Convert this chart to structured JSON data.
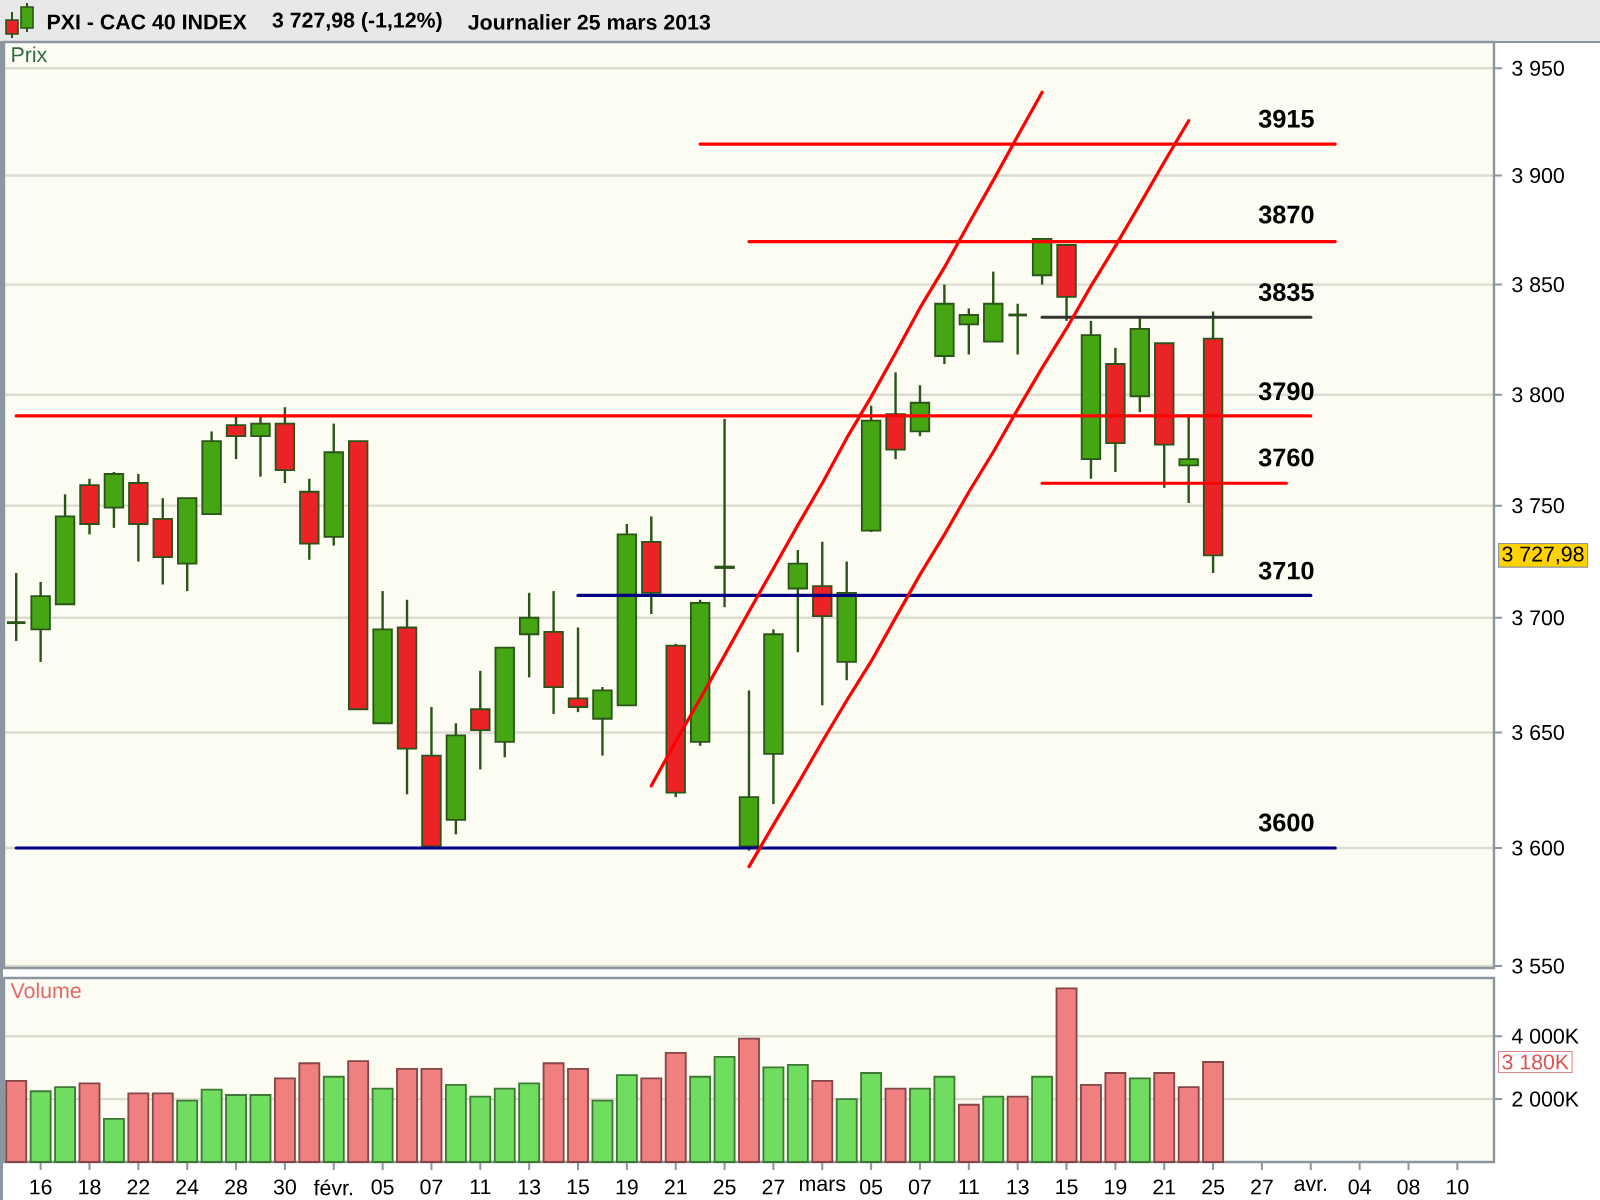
{
  "chart_data": [
    {
      "type": "candlestick",
      "title": "PXI - CAC 40 INDEX",
      "subtitle": "3 727,98 (-1,12%)",
      "ylabel": "Prix",
      "categories": [
        null,
        null,
        null,
        null,
        null,
        null,
        null,
        null,
        null,
        null,
        null,
        null,
        null,
        null,
        null,
        null,
        null,
        null,
        null,
        null,
        null,
        null,
        null,
        null,
        null,
        null,
        null,
        null,
        null,
        null,
        null,
        null,
        null,
        null,
        null,
        null,
        null,
        null,
        null,
        null,
        null,
        null,
        null,
        null,
        null,
        null,
        null,
        null,
        null,
        null,
        null,
        null,
        null,
        null,
        null,
        null,
        null,
        null,
        null,
        null,
        null
      ],
      "ohlc": [
        [
          3698,
          3720,
          3690,
          3698
        ],
        [
          3695,
          3716,
          3681,
          3710
        ],
        [
          3706,
          3755,
          3706,
          3745
        ],
        [
          3759,
          3762,
          3737,
          3742
        ],
        [
          3749,
          3765,
          3740,
          3764
        ],
        [
          3760,
          3764,
          3725,
          3742
        ],
        [
          3744,
          3753,
          3715,
          3727
        ],
        [
          3724,
          3753,
          3712,
          3753
        ],
        [
          3746,
          3783,
          3746,
          3779
        ],
        [
          3786,
          3790,
          3771,
          3781
        ],
        [
          3781,
          3790,
          3763,
          3787
        ],
        [
          3787,
          3794,
          3760,
          3766
        ],
        [
          3756,
          3762,
          3726,
          3733
        ],
        [
          3736,
          3787,
          3732,
          3774
        ],
        [
          3779,
          3779,
          3660,
          3660
        ],
        [
          3654,
          3712,
          3654,
          3695
        ],
        [
          3696,
          3708,
          3623,
          3643
        ],
        [
          3640,
          3661,
          3600,
          3601
        ],
        [
          3612,
          3654,
          3606,
          3649
        ],
        [
          3660,
          3677,
          3634,
          3651
        ],
        [
          3646,
          3687,
          3639,
          3687
        ],
        [
          3693,
          3711,
          3674,
          3700
        ],
        [
          3694,
          3712,
          3658,
          3670
        ],
        [
          3665,
          3696,
          3659,
          3661
        ],
        [
          3656,
          3670,
          3640,
          3668
        ],
        [
          3662,
          3742,
          3662,
          3737
        ],
        [
          3734,
          3745,
          3702,
          3711
        ],
        [
          3688,
          3689,
          3622,
          3624
        ],
        [
          3646,
          3708,
          3644,
          3707
        ],
        [
          3722,
          3789,
          3705,
          3723
        ],
        [
          3601,
          3668,
          3599,
          3622
        ],
        [
          3641,
          3695,
          3619,
          3693
        ],
        [
          3713,
          3730,
          3685,
          3724
        ],
        [
          3714,
          3734,
          3662,
          3701
        ],
        [
          3681,
          3725,
          3673,
          3711
        ],
        [
          3739,
          3795,
          3738,
          3788
        ],
        [
          3791,
          3810,
          3771,
          3775
        ],
        [
          3783,
          3804,
          3781,
          3796
        ],
        [
          3817,
          3850,
          3814,
          3841
        ],
        [
          3832,
          3839,
          3818,
          3836
        ],
        [
          3824,
          3856,
          3824,
          3841
        ],
        [
          3836,
          3841,
          3818,
          3836
        ],
        [
          3854,
          3871,
          3850,
          3871
        ],
        [
          3868,
          3868,
          3833,
          3844
        ],
        [
          3771,
          3833,
          3762,
          3827
        ],
        [
          3814,
          3821,
          3765,
          3778
        ],
        [
          3799,
          3835,
          3792,
          3830
        ],
        [
          3823,
          3823,
          3758,
          3777
        ],
        [
          3768,
          3791,
          3751,
          3771
        ],
        [
          3825,
          3838,
          3720,
          3727.98
        ],
        null,
        null,
        null,
        null,
        null,
        null,
        null,
        null,
        null,
        null,
        null
      ],
      "colors": [
        "#2a5418",
        "#45a512",
        "#45a512",
        "#ec2326",
        "#45a512",
        "#ec2326",
        "#ec2326",
        "#45a512",
        "#45a512",
        "#ec2326",
        "#45a512",
        "#ec2326",
        "#ec2326",
        "#45a512",
        "#ec2326",
        "#45a512",
        "#ec2326",
        "#ec2326",
        "#45a512",
        "#ec2326",
        "#45a512",
        "#45a512",
        "#ec2326",
        "#ec2326",
        "#45a512",
        "#45a512",
        "#ec2326",
        "#ec2326",
        "#45a512",
        "#45a512",
        "#45a512",
        "#45a512",
        "#45a512",
        "#ec2326",
        "#45a512",
        "#45a512",
        "#ec2326",
        "#45a512",
        "#45a512",
        "#45a512",
        "#45a512",
        "#2a5418",
        "#45a512",
        "#ec2326",
        "#45a512",
        "#ec2326",
        "#45a512",
        "#ec2326",
        "#45a512",
        "#ec2326",
        null,
        null,
        null,
        null,
        null,
        null,
        null,
        null,
        null,
        null,
        null
      ],
      "series": [
        {
          "type": "line",
          "color": "#ff0000",
          "values": [
            null,
            null,
            null,
            null,
            null,
            null,
            null,
            null,
            null,
            null,
            null,
            null,
            null,
            null,
            null,
            null,
            null,
            null,
            null,
            null,
            null,
            null,
            null,
            null,
            null,
            null,
            null,
            null,
            3915,
            3915,
            3915,
            3915,
            3915,
            3915,
            3915,
            3915,
            3915,
            3915,
            3915,
            3915,
            3915,
            3915,
            3915,
            3915,
            3915,
            3915,
            3915,
            3915,
            3915,
            3915,
            3915,
            3915,
            3915,
            3915,
            3915,
            null,
            null,
            null,
            null,
            null,
            null
          ]
        },
        {
          "type": "line",
          "color": "#ff0000",
          "values": [
            null,
            null,
            null,
            null,
            null,
            null,
            null,
            null,
            null,
            null,
            null,
            null,
            null,
            null,
            null,
            null,
            null,
            null,
            null,
            null,
            null,
            null,
            null,
            null,
            null,
            null,
            null,
            null,
            null,
            null,
            3870,
            3870,
            3870,
            3870,
            3870,
            3870,
            3870,
            3870,
            3870,
            3870,
            3870,
            3870,
            3870,
            3870,
            3870,
            3870,
            3870,
            3870,
            3870,
            3870,
            3870,
            3870,
            3870,
            3870,
            3870,
            null,
            null,
            null,
            null,
            null,
            null
          ]
        },
        {
          "type": "line",
          "color": "#333333",
          "values": [
            null,
            null,
            null,
            null,
            null,
            null,
            null,
            null,
            null,
            null,
            null,
            null,
            null,
            null,
            null,
            null,
            null,
            null,
            null,
            null,
            null,
            null,
            null,
            null,
            null,
            null,
            null,
            null,
            null,
            null,
            null,
            null,
            null,
            null,
            null,
            null,
            null,
            null,
            null,
            null,
            null,
            null,
            3835,
            3835,
            3835,
            3835,
            3835,
            3835,
            3835,
            3835,
            3835,
            3835,
            3835,
            3835,
            null,
            null,
            null,
            null,
            null,
            null,
            null
          ]
        },
        {
          "type": "line",
          "color": "#ff0000",
          "values": [
            3790,
            3790,
            3790,
            3790,
            3790,
            3790,
            3790,
            3790,
            3790,
            3790,
            3790,
            3790,
            3790,
            3790,
            3790,
            3790,
            3790,
            3790,
            3790,
            3790,
            3790,
            3790,
            3790,
            3790,
            3790,
            3790,
            3790,
            3790,
            3790,
            3790,
            3790,
            3790,
            3790,
            3790,
            3790,
            3790,
            3790,
            3790,
            3790,
            3790,
            3790,
            3790,
            3790,
            3790,
            3790,
            3790,
            3790,
            3790,
            3790,
            3790,
            3790,
            3790,
            3790,
            3790,
            null,
            null,
            null,
            null,
            null,
            null,
            null
          ]
        },
        {
          "type": "line",
          "color": "#ff0000",
          "values": [
            null,
            null,
            null,
            null,
            null,
            null,
            null,
            null,
            null,
            null,
            null,
            null,
            null,
            null,
            null,
            null,
            null,
            null,
            null,
            null,
            null,
            null,
            null,
            null,
            null,
            null,
            null,
            null,
            null,
            null,
            null,
            null,
            null,
            null,
            null,
            null,
            null,
            null,
            null,
            null,
            null,
            null,
            3760,
            3760,
            3760,
            3760,
            3760,
            3760,
            3760,
            3760,
            3760,
            3760,
            3760,
            null,
            null,
            null,
            null,
            null,
            null,
            null,
            null
          ]
        },
        {
          "type": "line",
          "color": "#000080",
          "values": [
            null,
            null,
            null,
            null,
            null,
            null,
            null,
            null,
            null,
            null,
            null,
            null,
            null,
            null,
            null,
            null,
            null,
            null,
            null,
            null,
            null,
            null,
            null,
            3710,
            3710,
            3710,
            3710,
            3710,
            3710,
            3710,
            3710,
            3710,
            3710,
            3710,
            3710,
            3710,
            3710,
            3710,
            3710,
            3710,
            3710,
            3710,
            3710,
            3710,
            3710,
            3710,
            3710,
            3710,
            3710,
            3710,
            3710,
            3710,
            3710,
            3710,
            null,
            null,
            null,
            null,
            null,
            null,
            null
          ]
        },
        {
          "type": "line",
          "color": "#000080",
          "values": [
            3600,
            3600,
            3600,
            3600,
            3600,
            3600,
            3600,
            3600,
            3600,
            3600,
            3600,
            3600,
            3600,
            3600,
            3600,
            3600,
            3600,
            3600,
            3600,
            3600,
            3600,
            3600,
            3600,
            3600,
            3600,
            3600,
            3600,
            3600,
            3600,
            3600,
            3600,
            3600,
            3600,
            3600,
            3600,
            3600,
            3600,
            3600,
            3600,
            3600,
            3600,
            3600,
            3600,
            3600,
            3600,
            3600,
            3600,
            3600,
            3600,
            3600,
            3600,
            3600,
            3600,
            3600,
            3600,
            null,
            null,
            null,
            null,
            null,
            null
          ]
        },
        {
          "type": "line",
          "color": "#ff0000",
          "values": [
            null,
            null,
            null,
            null,
            null,
            null,
            null,
            null,
            null,
            null,
            null,
            null,
            null,
            null,
            null,
            null,
            null,
            null,
            null,
            null,
            null,
            null,
            null,
            null,
            null,
            null,
            3627,
            3646,
            3665,
            3684,
            3703,
            3722,
            3741,
            3760,
            3780,
            3799,
            3819,
            3839,
            3858,
            3878,
            3898,
            3919,
            3939,
            null,
            null,
            null,
            null,
            null,
            null,
            null,
            null,
            null,
            null,
            null,
            null,
            null,
            null,
            null,
            null,
            null,
            null
          ]
        },
        {
          "type": "line",
          "color": "#ff0000",
          "values": [
            null,
            null,
            null,
            null,
            null,
            null,
            null,
            null,
            null,
            null,
            null,
            null,
            null,
            null,
            null,
            null,
            null,
            null,
            null,
            null,
            null,
            null,
            null,
            null,
            null,
            null,
            null,
            null,
            null,
            null,
            3592,
            3610,
            3628,
            3646,
            3664,
            3681,
            3700,
            3719,
            3737,
            3756,
            3774,
            3793,
            3812,
            3830,
            3849,
            3868,
            3887,
            3907,
            3926,
            null,
            null,
            null,
            null,
            null,
            null,
            null,
            null,
            null,
            null,
            null,
            null
          ]
        }
      ],
      "ylim": [
        3549,
        3963
      ],
      "log": "y",
      "yticks": [
        {
          "value": 3550,
          "label": "3 550"
        },
        {
          "value": 3600,
          "label": "3 600"
        },
        {
          "value": 3650,
          "label": "3 650"
        },
        {
          "value": 3700,
          "label": "3 700"
        },
        {
          "value": 3750,
          "label": "3 750"
        },
        {
          "value": 3800,
          "label": "3 800"
        },
        {
          "value": 3850,
          "label": "3 850"
        },
        {
          "value": 3900,
          "label": "3 900"
        },
        {
          "value": 3950,
          "label": "3 950"
        }
      ],
      "grid": "y",
      "annotations": [
        "Journalier 25 mars 2013",
        {
          "text": "3915",
          "y": 3915
        },
        {
          "text": "3870",
          "y": 3870
        },
        {
          "text": "3835",
          "y": 3835
        },
        {
          "text": "3790",
          "y": 3790
        },
        {
          "text": "3760",
          "y": 3760
        },
        {
          "text": "3710",
          "y": 3710
        },
        {
          "text": "3600",
          "y": 3600
        },
        "3 727,98"
      ]
    },
    {
      "type": "bar",
      "ylabel": "Volume",
      "categories": [
        null,
        "16",
        null,
        "18",
        null,
        "22",
        null,
        "24",
        null,
        "28",
        null,
        "30",
        null,
        "févr.",
        null,
        "05",
        null,
        "07",
        null,
        "11",
        null,
        "13",
        null,
        "15",
        null,
        "19",
        null,
        "21",
        null,
        "25",
        null,
        "27",
        null,
        "mars",
        null,
        "05",
        null,
        "07",
        null,
        "11",
        null,
        "13",
        null,
        "15",
        null,
        "19",
        null,
        "21",
        null,
        "25",
        null,
        "27",
        null,
        "avr.",
        null,
        "04",
        null,
        "08",
        null,
        "10",
        null
      ],
      "values": [
        2580,
        2250,
        2380,
        2500,
        1370,
        2180,
        2180,
        1950,
        2300,
        2130,
        2130,
        2660,
        3140,
        2710,
        3210,
        2330,
        2960,
        2960,
        2450,
        2080,
        2330,
        2500,
        3140,
        2960,
        1950,
        2760,
        2660,
        3470,
        2710,
        3340,
        3920,
        3010,
        3090,
        2580,
        2000,
        2830,
        2330,
        2330,
        2710,
        1820,
        2080,
        2080,
        2710,
        5520,
        2450,
        2830,
        2660,
        2830,
        2380,
        3180,
        null,
        null,
        null,
        null,
        null,
        null,
        null,
        null,
        null,
        null,
        null
      ],
      "colors": [
        "#f08080",
        "#70dd60",
        "#70dd60",
        "#f08080",
        "#70dd60",
        "#f08080",
        "#f08080",
        "#70dd60",
        "#70dd60",
        "#70dd60",
        "#70dd60",
        "#f08080",
        "#f08080",
        "#70dd60",
        "#f08080",
        "#70dd60",
        "#f08080",
        "#f08080",
        "#70dd60",
        "#70dd60",
        "#70dd60",
        "#70dd60",
        "#f08080",
        "#f08080",
        "#70dd60",
        "#70dd60",
        "#f08080",
        "#f08080",
        "#70dd60",
        "#70dd60",
        "#f08080",
        "#70dd60",
        "#70dd60",
        "#f08080",
        "#70dd60",
        "#70dd60",
        "#f08080",
        "#70dd60",
        "#70dd60",
        "#f08080",
        "#70dd60",
        "#f08080",
        "#70dd60",
        "#f08080",
        "#f08080",
        "#f08080",
        "#70dd60",
        "#f08080",
        "#f08080",
        "#f08080",
        null,
        null,
        null,
        null,
        null,
        null,
        null,
        null,
        null,
        null,
        null
      ],
      "ylim": [
        0,
        5850
      ],
      "yticks": [
        {
          "value": 2000,
          "label": "2 000K"
        },
        {
          "value": 4000,
          "label": "4 000K"
        }
      ],
      "grid": "y",
      "annotations": [
        "3 180K"
      ]
    }
  ]
}
